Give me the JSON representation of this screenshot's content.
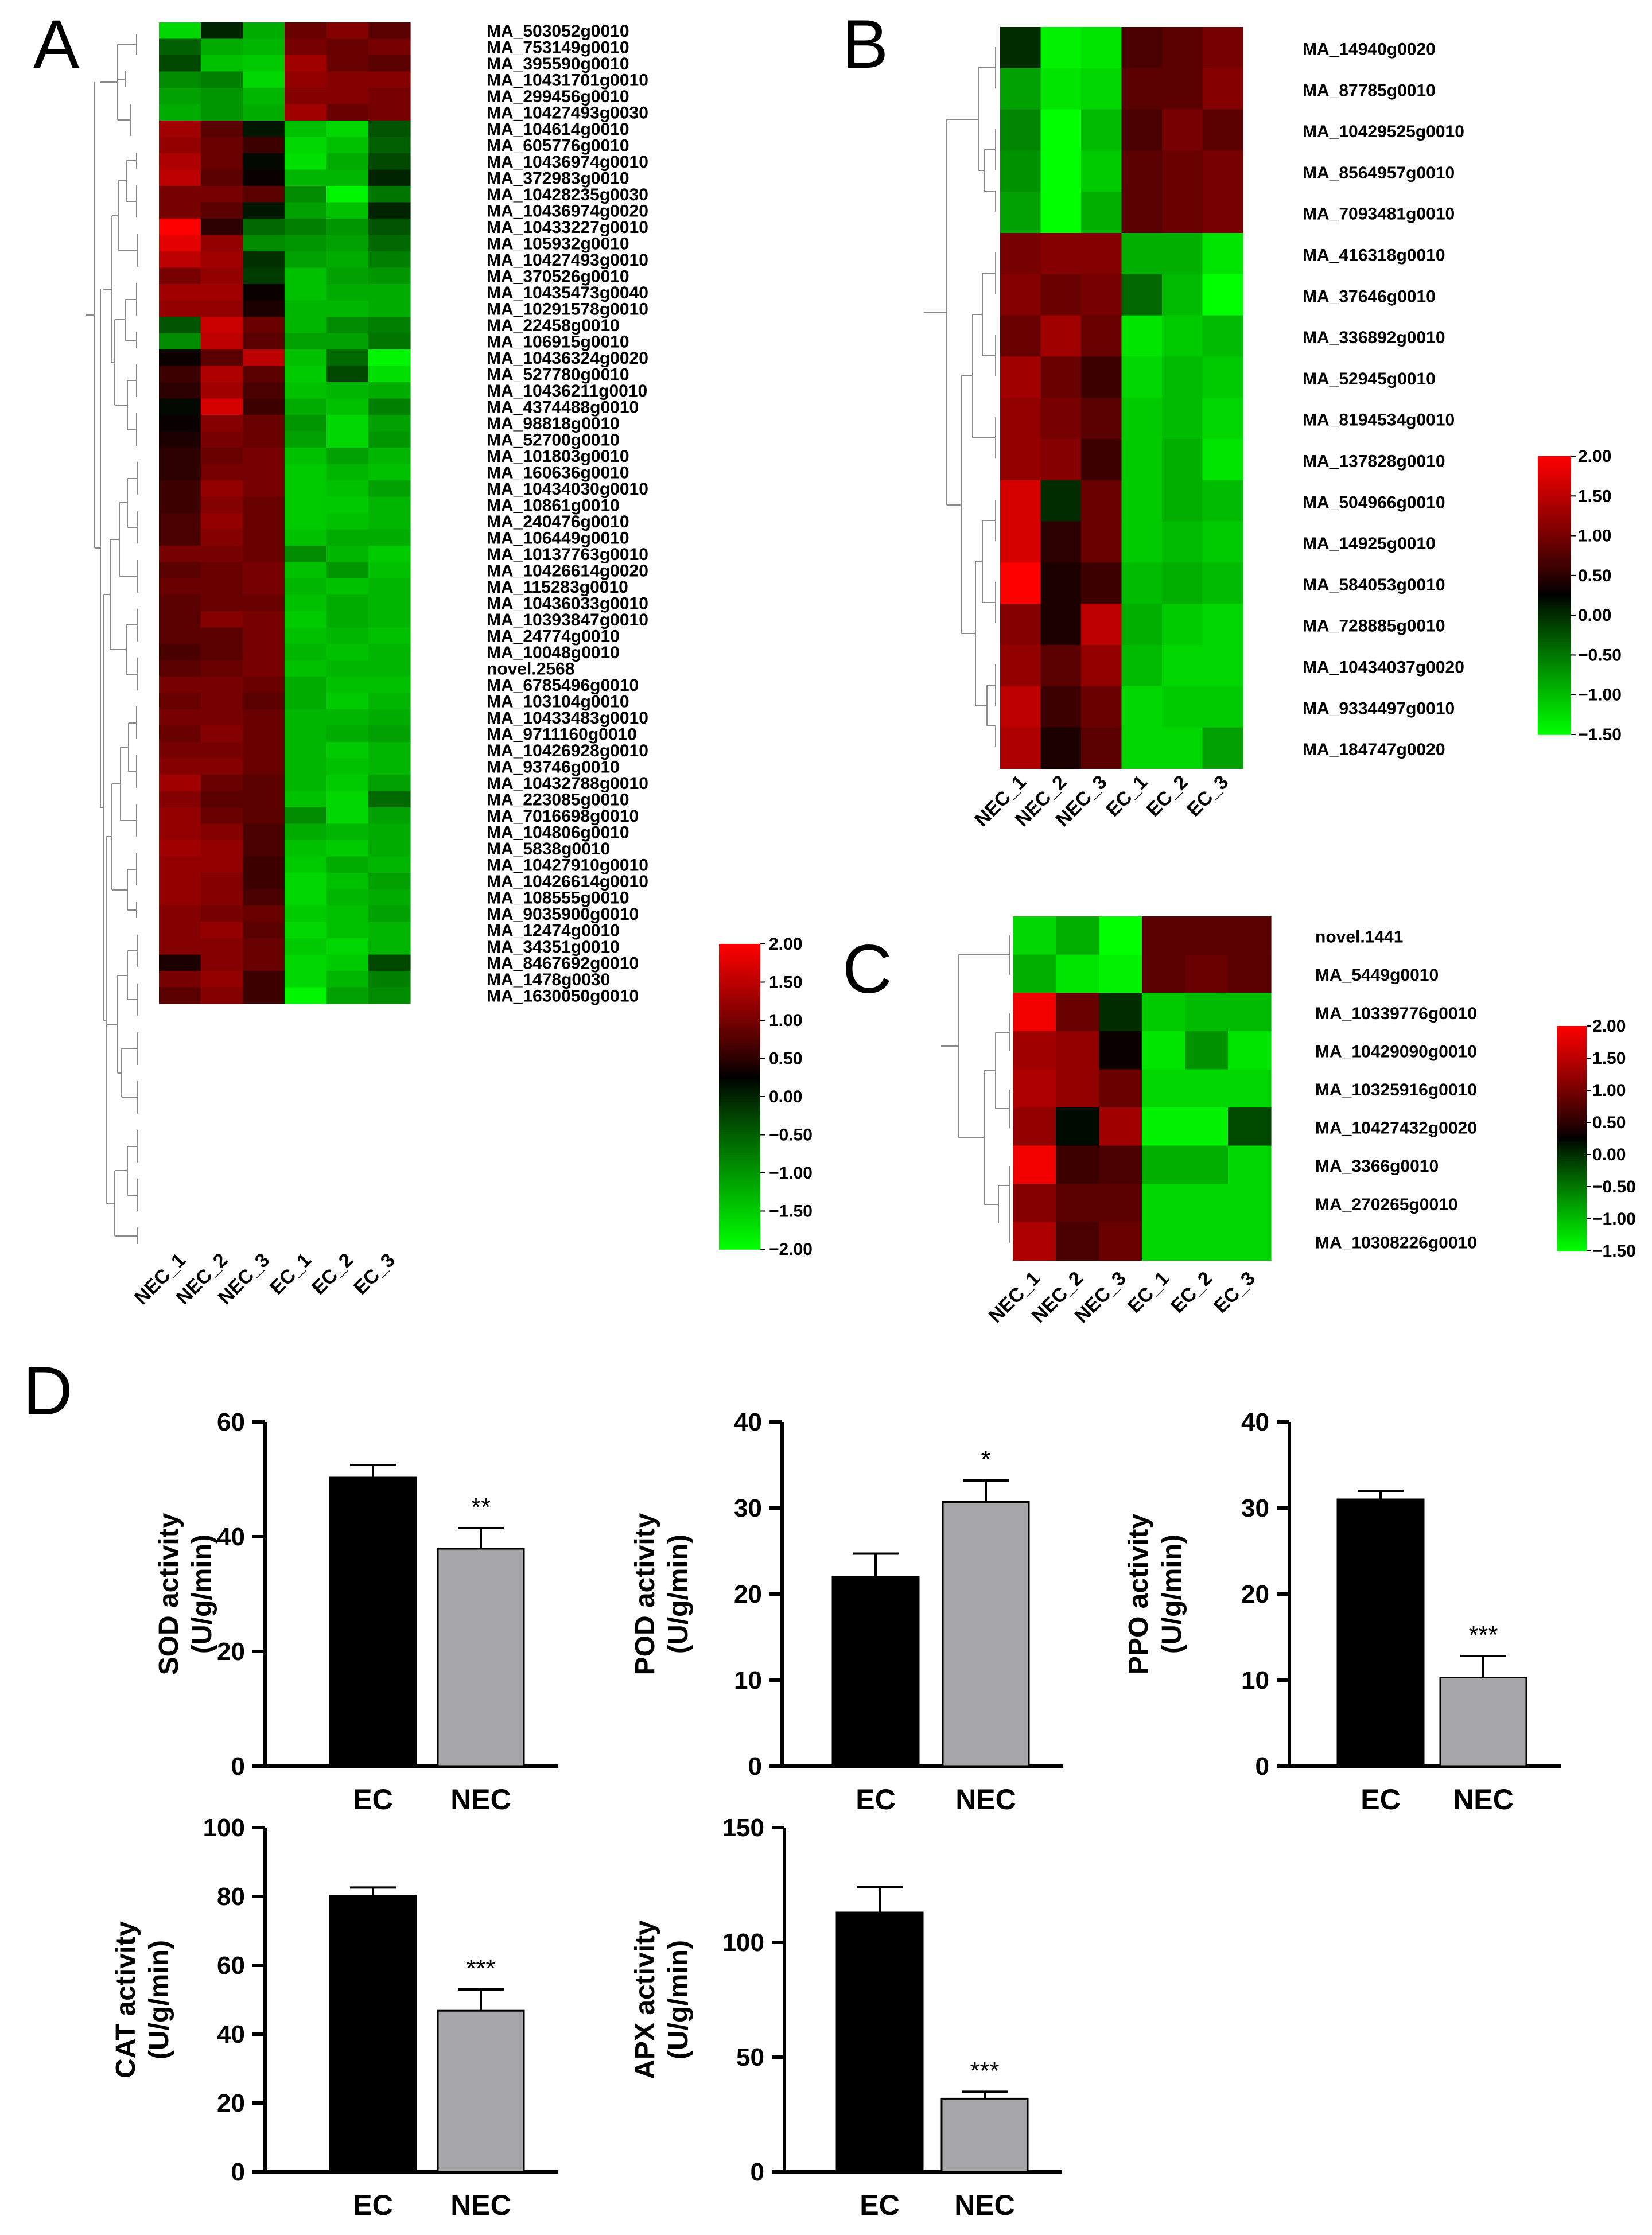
{
  "heatmap_colors": {
    "low": "#00ff00",
    "mid": "#000000",
    "high": "#ff0000"
  },
  "bar_colors": {
    "EC": "#000000",
    "NEC": "#a6a6a9"
  },
  "chart_data": [
    {
      "type": "heatmap",
      "panel": "A",
      "columns": [
        "NEC_1",
        "NEC_2",
        "NEC_3",
        "EC_1",
        "EC_2",
        "EC_3"
      ],
      "rows": [
        "MA_503052g0010",
        "MA_753149g0010",
        "MA_395590g0010",
        "MA_10431701g0010",
        "MA_299456g0010",
        "MA_10427493g0030",
        "MA_104614g0010",
        "MA_605776g0010",
        "MA_10436974g0010",
        "MA_372983g0010",
        "MA_10428235g0030",
        "MA_10436974g0020",
        "MA_10433227g0010",
        "MA_105932g0010",
        "MA_10427493g0010",
        "MA_370526g0010",
        "MA_10435473g0040",
        "MA_10291578g0010",
        "MA_22458g0010",
        "MA_106915g0010",
        "MA_10436324g0020",
        "MA_527780g0010",
        "MA_10436211g0010",
        "MA_4374488g0010",
        "MA_98818g0010",
        "MA_52700g0010",
        "MA_101803g0010",
        "MA_160636g0010",
        "MA_10434030g0010",
        "MA_10861g0010",
        "MA_240476g0010",
        "MA_106449g0010",
        "MA_10137763g0010",
        "MA_10426614g0020",
        "MA_115283g0010",
        "MA_10436033g0010",
        "MA_10393847g0010",
        "MA_24774g0010",
        "MA_10048g0010",
        "novel.2568",
        "MA_6785496g0010",
        "MA_103104g0010",
        "MA_10433483g0010",
        "MA_9711160g0010",
        "MA_10426928g0010",
        "MA_93746g0010",
        "MA_10432788g0010",
        "MA_223085g0010",
        "MA_7016698g0010",
        "MA_104806g0010",
        "MA_5838g0010",
        "MA_10427910g0010",
        "MA_10426614g0010",
        "MA_108555g0010",
        "MA_9035900g0010",
        "MA_12474g0010",
        "MA_34351g0010",
        "MA_8467692g0010",
        "MA_1478g0030",
        "MA_1630050g0010"
      ],
      "values": [
        [
          -1.6,
          0.0,
          -1.2,
          0.9,
          1.1,
          0.8
        ],
        [
          -0.5,
          -1.2,
          -1.3,
          1.0,
          0.9,
          1.0
        ],
        [
          -0.3,
          -1.4,
          -1.5,
          1.3,
          0.9,
          0.8
        ],
        [
          -0.9,
          -0.8,
          -1.6,
          1.2,
          1.1,
          1.1
        ],
        [
          -1.1,
          -1.0,
          -1.3,
          1.1,
          1.1,
          1.0
        ],
        [
          -1.2,
          -1.0,
          -1.2,
          1.3,
          0.9,
          1.0
        ],
        [
          1.3,
          0.8,
          0.1,
          -1.4,
          -1.6,
          -0.4
        ],
        [
          1.2,
          0.9,
          0.6,
          -1.6,
          -1.4,
          -0.5
        ],
        [
          1.4,
          0.9,
          0.2,
          -1.7,
          -1.2,
          -0.3
        ],
        [
          1.5,
          0.8,
          0.3,
          -1.3,
          -1.3,
          0.0
        ],
        [
          1.0,
          1.0,
          0.8,
          -0.9,
          -1.9,
          -0.7
        ],
        [
          1.0,
          0.8,
          0.1,
          -1.1,
          -1.4,
          0.0
        ],
        [
          2.0,
          0.5,
          -0.6,
          -0.8,
          -1.0,
          -0.4
        ],
        [
          1.8,
          1.2,
          -0.9,
          -1.0,
          -1.1,
          -0.6
        ],
        [
          1.5,
          1.3,
          -0.1,
          -1.1,
          -1.2,
          -0.8
        ],
        [
          1.0,
          1.2,
          -0.2,
          -1.4,
          -1.1,
          -1.0
        ],
        [
          1.3,
          1.3,
          0.3,
          -1.4,
          -1.2,
          -1.2
        ],
        [
          1.2,
          1.2,
          0.4,
          -1.3,
          -1.3,
          -1.2
        ],
        [
          -0.4,
          1.6,
          0.9,
          -1.3,
          -0.9,
          -0.8
        ],
        [
          -0.9,
          1.5,
          0.8,
          -1.1,
          -1.1,
          -0.7
        ],
        [
          0.3,
          0.8,
          1.5,
          -1.4,
          -0.6,
          -1.9
        ],
        [
          0.6,
          1.4,
          0.8,
          -1.5,
          -0.3,
          -1.7
        ],
        [
          0.5,
          1.3,
          0.7,
          -1.4,
          -1.3,
          -1.2
        ],
        [
          0.2,
          1.7,
          0.6,
          -1.2,
          -1.4,
          -0.8
        ],
        [
          0.3,
          1.1,
          0.9,
          -1.0,
          -1.6,
          -1.1
        ],
        [
          0.4,
          1.0,
          0.9,
          -1.1,
          -1.6,
          -1.0
        ],
        [
          0.5,
          0.9,
          1.0,
          -1.4,
          -1.1,
          -1.3
        ],
        [
          0.5,
          1.0,
          1.0,
          -1.5,
          -1.3,
          -1.4
        ],
        [
          0.6,
          1.2,
          1.0,
          -1.5,
          -1.4,
          -1.1
        ],
        [
          0.6,
          1.1,
          0.9,
          -1.5,
          -1.5,
          -1.3
        ],
        [
          0.7,
          1.2,
          0.9,
          -1.5,
          -1.4,
          -1.3
        ],
        [
          0.7,
          1.1,
          0.9,
          -1.4,
          -1.2,
          -1.2
        ],
        [
          1.0,
          1.0,
          0.9,
          -0.9,
          -1.3,
          -1.5
        ],
        [
          0.8,
          0.9,
          1.0,
          -1.4,
          -1.0,
          -1.4
        ],
        [
          0.9,
          0.9,
          1.0,
          -1.3,
          -1.4,
          -1.3
        ],
        [
          0.8,
          0.9,
          0.9,
          -1.4,
          -1.2,
          -1.3
        ],
        [
          0.8,
          1.1,
          1.0,
          -1.5,
          -1.2,
          -1.3
        ],
        [
          0.8,
          0.8,
          1.0,
          -1.4,
          -1.3,
          -1.4
        ],
        [
          0.7,
          0.8,
          1.0,
          -1.3,
          -1.4,
          -1.3
        ],
        [
          0.8,
          0.9,
          1.0,
          -1.4,
          -1.3,
          -1.3
        ],
        [
          1.0,
          1.0,
          0.9,
          -1.2,
          -1.4,
          -1.4
        ],
        [
          0.9,
          1.0,
          0.8,
          -1.2,
          -1.5,
          -1.3
        ],
        [
          1.0,
          1.0,
          0.9,
          -1.3,
          -1.3,
          -1.2
        ],
        [
          0.9,
          1.1,
          0.9,
          -1.3,
          -1.2,
          -1.1
        ],
        [
          1.0,
          1.0,
          0.9,
          -1.3,
          -1.5,
          -1.3
        ],
        [
          1.1,
          1.1,
          0.9,
          -1.3,
          -1.4,
          -1.3
        ],
        [
          1.3,
          0.9,
          0.8,
          -1.3,
          -1.5,
          -1.1
        ],
        [
          1.1,
          0.8,
          0.8,
          -1.4,
          -1.6,
          -0.6
        ],
        [
          1.2,
          0.9,
          0.8,
          -0.9,
          -1.6,
          -1.1
        ],
        [
          1.2,
          1.1,
          0.7,
          -1.2,
          -1.3,
          -1.2
        ],
        [
          1.3,
          1.2,
          0.7,
          -1.4,
          -1.5,
          -1.2
        ],
        [
          1.2,
          1.2,
          0.6,
          -1.5,
          -1.2,
          -1.3
        ],
        [
          1.2,
          1.1,
          0.6,
          -1.6,
          -1.4,
          -1.1
        ],
        [
          1.2,
          1.1,
          0.7,
          -1.6,
          -1.3,
          -1.2
        ],
        [
          1.1,
          1.0,
          0.9,
          -1.5,
          -1.4,
          -1.1
        ],
        [
          1.1,
          1.2,
          0.8,
          -1.6,
          -1.4,
          -1.3
        ],
        [
          1.1,
          1.1,
          0.9,
          -1.5,
          -1.6,
          -1.3
        ],
        [
          0.4,
          1.1,
          0.9,
          -1.6,
          -1.5,
          -0.3
        ],
        [
          1.0,
          1.2,
          0.6,
          -1.6,
          -1.3,
          -0.8
        ],
        [
          0.8,
          1.1,
          0.6,
          -1.9,
          -1.1,
          -0.9
        ]
      ],
      "scale": {
        "min": -2.0,
        "max": 2.0,
        "ticks": [
          "2.00",
          "1.50",
          "1.00",
          "0.50",
          "0.00",
          "−0.50",
          "−1.00",
          "−1.50",
          "−2.00"
        ]
      }
    },
    {
      "type": "heatmap",
      "panel": "B",
      "columns": [
        "NEC_1",
        "NEC_2",
        "NEC_3",
        "EC_1",
        "EC_2",
        "EC_3"
      ],
      "rows": [
        "MA_14940g0020",
        "MA_87785g0010",
        "MA_10429525g0010",
        "MA_8564957g0010",
        "MA_7093481g0010",
        "MA_416318g0010",
        "MA_37646g0010",
        "MA_336892g0010",
        "MA_52945g0010",
        "MA_8194534g0010",
        "MA_137828g0010",
        "MA_504966g0010",
        "MA_14925g0010",
        "MA_584053g0010",
        "MA_728885g0010",
        "MA_10434037g0020",
        "MA_9334497g0010",
        "MA_184747g0020"
      ],
      "values": [
        [
          0.0,
          -1.4,
          -1.3,
          0.7,
          0.8,
          1.0
        ],
        [
          -0.8,
          -1.3,
          -1.2,
          0.8,
          0.8,
          1.1
        ],
        [
          -0.6,
          -1.5,
          -1.0,
          0.7,
          1.0,
          0.8
        ],
        [
          -0.7,
          -1.5,
          -1.1,
          0.8,
          0.9,
          1.0
        ],
        [
          -0.8,
          -1.5,
          -0.9,
          0.8,
          0.9,
          1.0
        ],
        [
          1.0,
          1.1,
          1.1,
          -0.9,
          -0.9,
          -1.3
        ],
        [
          1.1,
          0.9,
          1.0,
          -0.4,
          -1.0,
          -1.5
        ],
        [
          0.9,
          1.3,
          0.9,
          -1.3,
          -1.1,
          -1.0
        ],
        [
          1.3,
          0.9,
          0.6,
          -1.2,
          -1.0,
          -1.1
        ],
        [
          1.2,
          1.0,
          0.8,
          -1.1,
          -1.0,
          -1.2
        ],
        [
          1.2,
          1.1,
          0.6,
          -1.1,
          -0.9,
          -1.3
        ],
        [
          1.7,
          0.0,
          0.9,
          -1.1,
          -0.9,
          -1.0
        ],
        [
          1.7,
          0.5,
          0.9,
          -1.1,
          -1.0,
          -1.1
        ],
        [
          2.0,
          0.4,
          0.6,
          -1.0,
          -0.9,
          -1.0
        ],
        [
          1.1,
          0.4,
          1.5,
          -0.9,
          -1.1,
          -1.2
        ],
        [
          1.2,
          0.8,
          1.2,
          -1.0,
          -1.2,
          -1.2
        ],
        [
          1.5,
          0.6,
          0.9,
          -1.2,
          -1.1,
          -1.1
        ],
        [
          1.4,
          0.4,
          0.8,
          -1.2,
          -1.2,
          -0.8
        ]
      ],
      "scale": {
        "min": -1.5,
        "max": 2.0,
        "ticks": [
          "2.00",
          "1.50",
          "1.00",
          "0.50",
          "0.00",
          "−0.50",
          "−1.00",
          "−1.50"
        ]
      }
    },
    {
      "type": "heatmap",
      "panel": "C",
      "columns": [
        "NEC_1",
        "NEC_2",
        "NEC_3",
        "EC_1",
        "EC_2",
        "EC_3"
      ],
      "rows": [
        "novel.1441",
        "MA_5449g0010",
        "MA_10339776g0010",
        "MA_10429090g0010",
        "MA_10325916g0010",
        "MA_10427432g0020",
        "MA_3366g0010",
        "MA_270265g0010",
        "MA_10308226g0010"
      ],
      "values": [
        [
          -1.2,
          -0.9,
          -1.5,
          0.8,
          0.8,
          0.8
        ],
        [
          -0.9,
          -1.3,
          -1.4,
          0.8,
          0.9,
          0.8
        ],
        [
          1.9,
          0.9,
          0.0,
          -1.1,
          -1.0,
          -1.0
        ],
        [
          1.3,
          1.2,
          0.3,
          -1.3,
          -0.7,
          -1.3
        ],
        [
          1.4,
          1.2,
          0.9,
          -1.2,
          -1.2,
          -1.2
        ],
        [
          1.2,
          0.2,
          1.3,
          -1.4,
          -1.4,
          -0.2
        ],
        [
          1.9,
          0.6,
          0.7,
          -0.9,
          -0.9,
          -1.2
        ],
        [
          1.1,
          0.8,
          0.8,
          -1.2,
          -1.2,
          -1.2
        ],
        [
          1.4,
          0.7,
          0.9,
          -1.2,
          -1.2,
          -1.2
        ]
      ],
      "scale": {
        "min": -1.5,
        "max": 2.0,
        "ticks": [
          "2.00",
          "1.50",
          "1.00",
          "0.50",
          "0.00",
          "−0.50",
          "−1.00",
          "−1.50"
        ]
      }
    },
    {
      "type": "bar",
      "panel": "D",
      "ylabel_line1": "SOD activity",
      "ylabel_line2": "(U/g/min)",
      "categories": [
        "EC",
        "NEC"
      ],
      "values": [
        50.3,
        37.9
      ],
      "errors": [
        2.2,
        3.6
      ],
      "significance": [
        "",
        "**"
      ],
      "ylim": [
        0,
        60
      ],
      "yticks": [
        "0",
        "20",
        "40",
        "60"
      ]
    },
    {
      "type": "bar",
      "panel": "D",
      "ylabel_line1": "POD activity",
      "ylabel_line2": "(U/g/min)",
      "categories": [
        "EC",
        "NEC"
      ],
      "values": [
        22.0,
        30.7
      ],
      "errors": [
        2.7,
        2.5
      ],
      "significance": [
        "",
        "*"
      ],
      "ylim": [
        0,
        40
      ],
      "yticks": [
        "0",
        "10",
        "20",
        "30",
        "40"
      ]
    },
    {
      "type": "bar",
      "panel": "D",
      "ylabel_line1": "PPO activity",
      "ylabel_line2": "(U/g/min)",
      "categories": [
        "EC",
        "NEC"
      ],
      "values": [
        31.0,
        10.3
      ],
      "errors": [
        1.0,
        2.5
      ],
      "significance": [
        "",
        "***"
      ],
      "ylim": [
        0,
        40
      ],
      "yticks": [
        "0",
        "10",
        "20",
        "30",
        "40"
      ]
    },
    {
      "type": "bar",
      "panel": "D",
      "ylabel_line1": "CAT activity",
      "ylabel_line2": "(U/g/min)",
      "categories": [
        "EC",
        "NEC"
      ],
      "values": [
        80.2,
        46.8
      ],
      "errors": [
        2.4,
        6.2
      ],
      "significance": [
        "",
        "***"
      ],
      "ylim": [
        0,
        100
      ],
      "yticks": [
        "0",
        "20",
        "40",
        "60",
        "80",
        "100"
      ]
    },
    {
      "type": "bar",
      "panel": "D",
      "ylabel_line1": "APX activity",
      "ylabel_line2": "(U/g/min)",
      "categories": [
        "EC",
        "NEC"
      ],
      "values": [
        113.0,
        31.9
      ],
      "errors": [
        11.0,
        3.0
      ],
      "significance": [
        "",
        "***"
      ],
      "ylim": [
        0,
        150
      ],
      "yticks": [
        "0",
        "50",
        "100",
        "150"
      ]
    }
  ]
}
